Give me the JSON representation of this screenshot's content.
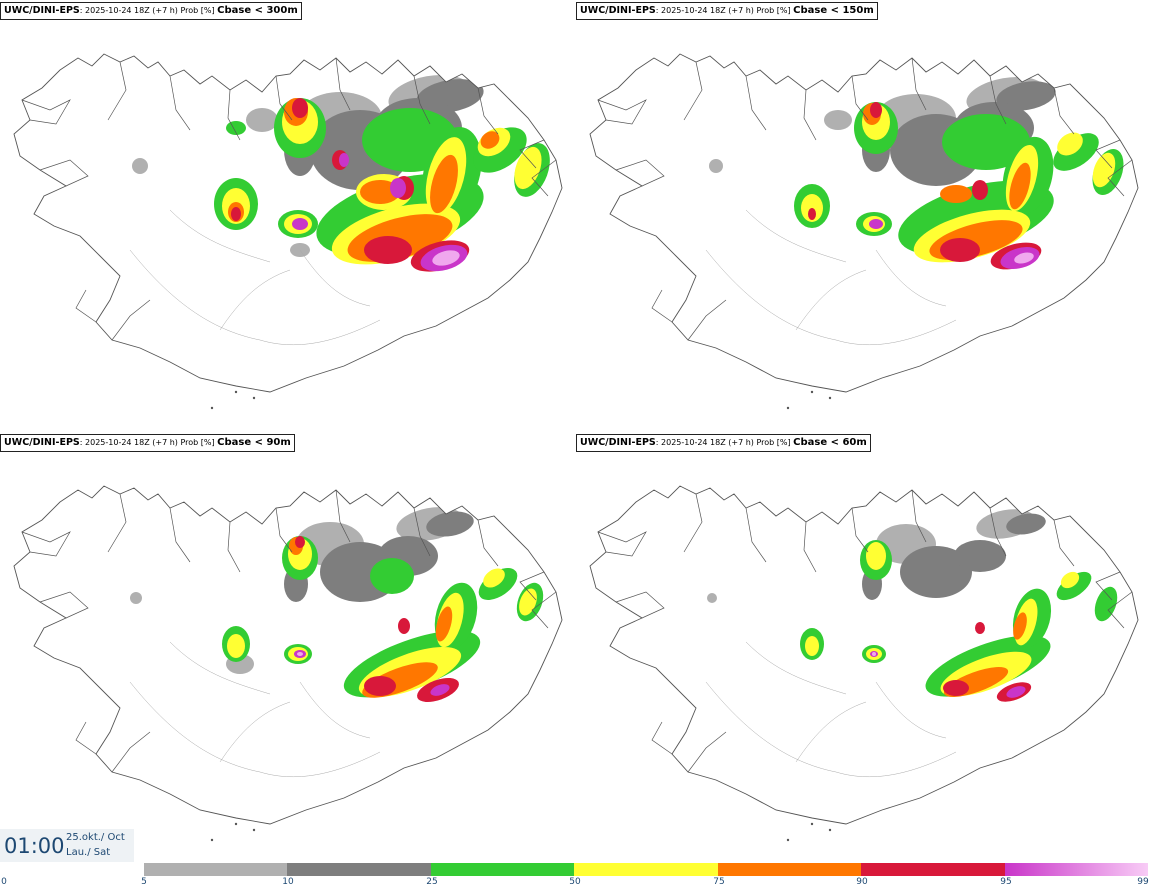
{
  "panels": [
    {
      "model": "UWC/DINI-EPS",
      "run": ": 2025-10-24 18Z (+7 h) Prob [%]",
      "variable": "Cbase < 300m"
    },
    {
      "model": "UWC/DINI-EPS",
      "run": ": 2025-10-24 18Z (+7 h) Prob [%]",
      "variable": "Cbase < 150m"
    },
    {
      "model": "UWC/DINI-EPS",
      "run": ": 2025-10-24 18Z (+7 h) Prob [%]",
      "variable": "Cbase < 90m"
    },
    {
      "model": "UWC/DINI-EPS",
      "run": ": 2025-10-24 18Z (+7 h) Prob [%]",
      "variable": "Cbase < 60m"
    }
  ],
  "valid_time": {
    "time": "01:00",
    "date_line1": "25.okt./ Oct",
    "date_line2": "Lau./ Sat"
  },
  "colorbar": {
    "ticks": [
      "0",
      "5",
      "10",
      "25",
      "50",
      "75",
      "90",
      "95",
      "99"
    ],
    "colors": [
      "#b0b0b0",
      "#7e7e7e",
      "#33cc33",
      "#ffff33",
      "#ff7700",
      "#d8183a",
      "#c935c9"
    ],
    "last_gradient_to": "#f8ccf6"
  },
  "map_colors": {
    "coast": "#555555",
    "p5": "#b0b0b0",
    "p10": "#7e7e7e",
    "p25": "#33cc33",
    "p50": "#ffff33",
    "p75": "#ff7700",
    "p90": "#d8183a",
    "p95": "#c935c9",
    "p99": "#f0a8ee"
  }
}
